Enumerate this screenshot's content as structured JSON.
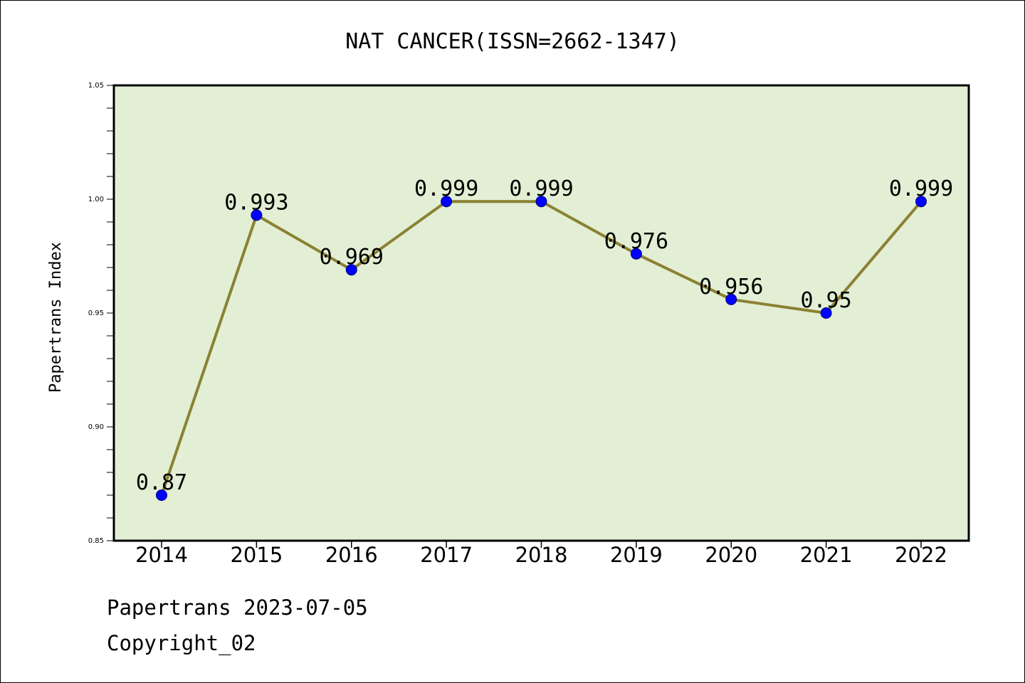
{
  "chart_data": {
    "type": "line",
    "title": "NAT CANCER(ISSN=2662-1347)",
    "xlabel": "",
    "ylabel": "Papertrans Index",
    "categories": [
      "2014",
      "2015",
      "2016",
      "2017",
      "2018",
      "2019",
      "2020",
      "2021",
      "2022"
    ],
    "series": [
      {
        "values": [
          0.87,
          0.993,
          0.969,
          0.999,
          0.999,
          0.976,
          0.956,
          0.95,
          0.999
        ],
        "labels": [
          "0.87",
          "0.993",
          "0.969",
          "0.999",
          "0.999",
          "0.976",
          "0.956",
          "0.95",
          "0.999"
        ]
      }
    ],
    "ylim": [
      0.85,
      1.05
    ],
    "yticks": [
      "0.85",
      "0.90",
      "0.95",
      "1.00",
      "1.05"
    ],
    "grid": false,
    "plot_background": "#e2efd4",
    "line_color": "#8b8133",
    "marker_color": "#0000ff"
  },
  "footer": {
    "line1": "Papertrans 2023-07-05",
    "line2": "Copyright_02"
  }
}
